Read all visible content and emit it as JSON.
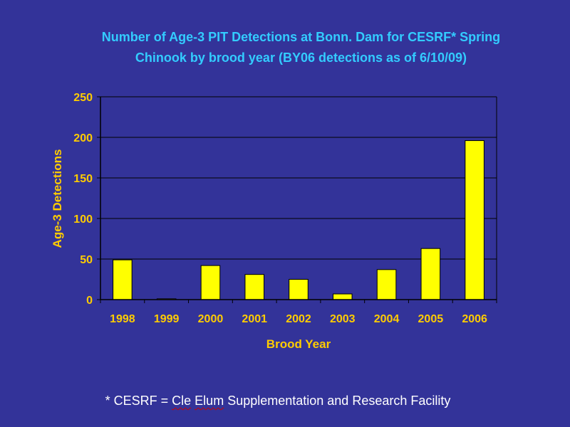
{
  "colors": {
    "background": "#333399",
    "title": "#33CCFF",
    "axis_text": "#FFCC00",
    "bar_fill": "#FFFF00",
    "footnote": "#FFFFFF"
  },
  "chart_data": {
    "type": "bar",
    "title": "Number of Age-3 PIT Detections at Bonn. Dam for CESRF* Spring Chinook by brood year (BY06 detections as of 6/10/09)",
    "title_lines": [
      "Number of Age-3 PIT Detections at Bonn. Dam for CESRF* Spring",
      "Chinook by brood year (BY06 detections as of 6/10/09)"
    ],
    "categories": [
      "1998",
      "1999",
      "2000",
      "2001",
      "2002",
      "2003",
      "2004",
      "2005",
      "2006"
    ],
    "values": [
      49,
      1,
      42,
      31,
      25,
      7,
      37,
      63,
      196
    ],
    "xlabel": "Brood Year",
    "ylabel": "Age-3 Detections",
    "ylim": [
      0,
      250
    ],
    "yticks": [
      0,
      50,
      100,
      150,
      200,
      250
    ],
    "grid": true,
    "legend": "none"
  },
  "footnote": {
    "prefix": "* CESRF = ",
    "word1": "Cle",
    "space": " ",
    "word2": "Elum",
    "suffix": " Supplementation and Research Facility"
  }
}
